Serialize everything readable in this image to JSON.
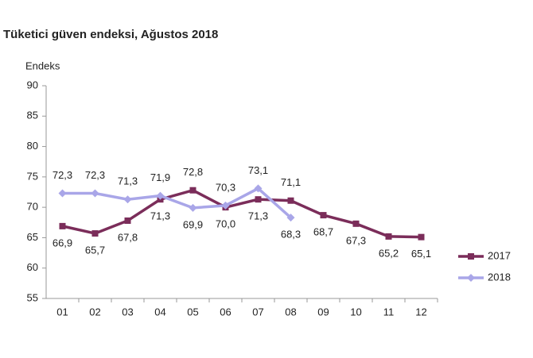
{
  "chart_data": {
    "type": "line",
    "title": "Tüketici güven endeksi, Ağustos 2018",
    "y_label": "Endeks",
    "categories": [
      "01",
      "02",
      "03",
      "04",
      "05",
      "06",
      "07",
      "08",
      "09",
      "10",
      "11",
      "12"
    ],
    "series": [
      {
        "name": "2017",
        "color": "#7b2d5a",
        "values": [
          66.9,
          65.7,
          67.8,
          71.3,
          72.8,
          70.0,
          71.3,
          71.1,
          68.7,
          67.3,
          65.2,
          65.1
        ],
        "value_labels": [
          "66,9",
          "65,7",
          "67,8",
          "71,3",
          "72,8",
          "70,0",
          "71,3",
          "71,1",
          "68,7",
          "67,3",
          "65,2",
          "65,1"
        ]
      },
      {
        "name": "2018",
        "color": "#a9a6e8",
        "values": [
          72.3,
          72.3,
          71.3,
          71.9,
          69.9,
          70.3,
          73.1,
          68.3,
          null,
          null,
          null,
          null
        ],
        "value_labels": [
          "72,3",
          "72,3",
          "71,3",
          "71,9",
          "69,9",
          "70,3",
          "73,1",
          "68,3",
          null,
          null,
          null,
          null
        ]
      }
    ],
    "ylim": [
      55,
      90
    ],
    "yticks": [
      55,
      60,
      65,
      70,
      75,
      80,
      85,
      90
    ],
    "grid": false,
    "legend": "right"
  }
}
